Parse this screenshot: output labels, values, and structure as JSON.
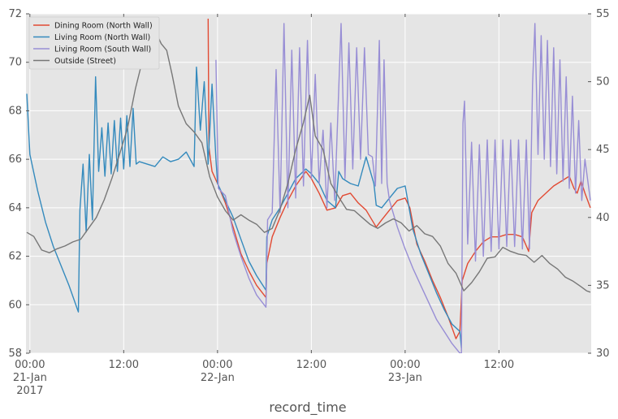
{
  "chart_data": {
    "type": "line",
    "title": "",
    "xlabel": "record_time",
    "ylabel_left": "",
    "ylabel_right": "",
    "grid": true,
    "legend_position": "top-left",
    "background": "#e5e5e5",
    "x_range_hours": [
      -0.5,
      71.8
    ],
    "ylim_left": [
      58,
      72
    ],
    "ylim_right": [
      30,
      55
    ],
    "yticks_left": [
      "58",
      "60",
      "62",
      "64",
      "66",
      "68",
      "70",
      "72"
    ],
    "yticks_right": [
      "30",
      "35",
      "40",
      "45",
      "50",
      "55"
    ],
    "xticks": [
      {
        "hour": 0,
        "lines": [
          "00:00",
          "21-Jan",
          "2017"
        ]
      },
      {
        "hour": 12,
        "lines": [
          "12:00"
        ]
      },
      {
        "hour": 24,
        "lines": [
          "00:00",
          "22-Jan"
        ]
      },
      {
        "hour": 36,
        "lines": [
          "12:00"
        ]
      },
      {
        "hour": 48,
        "lines": [
          "00:00",
          "23-Jan"
        ]
      },
      {
        "hour": 60,
        "lines": [
          "12:00"
        ]
      }
    ],
    "series": [
      {
        "name": "Dining Room (North Wall)",
        "color": "#e24a33",
        "axis": "left",
        "points": [
          [
            22.8,
            71.8
          ],
          [
            22.9,
            66.5
          ],
          [
            23.3,
            65.5
          ],
          [
            24,
            65.0
          ],
          [
            25,
            64.2
          ],
          [
            26,
            63.2
          ],
          [
            27,
            62.1
          ],
          [
            28,
            61.4
          ],
          [
            29,
            60.8
          ],
          [
            30.2,
            60.3
          ],
          [
            30.3,
            61.7
          ],
          [
            31,
            62.8
          ],
          [
            32,
            63.6
          ],
          [
            33,
            64.3
          ],
          [
            34,
            64.9
          ],
          [
            35.3,
            65.5
          ],
          [
            36,
            65.2
          ],
          [
            37,
            64.6
          ],
          [
            38,
            63.9
          ],
          [
            39.1,
            64.0
          ],
          [
            40,
            64.5
          ],
          [
            41,
            64.6
          ],
          [
            42,
            64.2
          ],
          [
            43,
            63.9
          ],
          [
            44.3,
            63.2
          ],
          [
            45,
            63.5
          ],
          [
            46,
            63.9
          ],
          [
            47,
            64.3
          ],
          [
            48,
            64.4
          ],
          [
            48.6,
            64.0
          ],
          [
            49.5,
            62.5
          ],
          [
            50.5,
            61.8
          ],
          [
            51.5,
            61.0
          ],
          [
            52.5,
            60.3
          ],
          [
            53.5,
            59.5
          ],
          [
            54.5,
            58.6
          ],
          [
            55.0,
            58.9
          ],
          [
            55.3,
            61.0
          ],
          [
            56,
            61.7
          ],
          [
            57,
            62.2
          ],
          [
            58,
            62.6
          ],
          [
            59,
            62.8
          ],
          [
            60,
            62.8
          ],
          [
            61,
            62.9
          ],
          [
            62,
            62.9
          ],
          [
            63,
            62.8
          ],
          [
            63.8,
            62.2
          ],
          [
            64.2,
            63.8
          ],
          [
            65,
            64.3
          ],
          [
            66,
            64.6
          ],
          [
            67,
            64.9
          ],
          [
            68,
            65.1
          ],
          [
            69,
            65.3
          ],
          [
            69.6,
            64.8
          ],
          [
            70.0,
            64.6
          ],
          [
            70.5,
            65.1
          ],
          [
            71.0,
            64.6
          ],
          [
            71.7,
            64.0
          ]
        ]
      },
      {
        "name": "Living Room (North Wall)",
        "color": "#348abd",
        "axis": "left",
        "points": [
          [
            -0.4,
            68.7
          ],
          [
            0,
            66.2
          ],
          [
            1,
            64.7
          ],
          [
            2,
            63.4
          ],
          [
            3,
            62.4
          ],
          [
            4,
            61.6
          ],
          [
            5,
            60.8
          ],
          [
            6.2,
            59.7
          ],
          [
            6.4,
            63.9
          ],
          [
            6.8,
            65.8
          ],
          [
            7.2,
            63.0
          ],
          [
            7.6,
            66.2
          ],
          [
            8.0,
            63.5
          ],
          [
            8.4,
            69.4
          ],
          [
            8.8,
            65.5
          ],
          [
            9.2,
            67.3
          ],
          [
            9.6,
            65.3
          ],
          [
            10.0,
            67.5
          ],
          [
            10.4,
            65.4
          ],
          [
            10.8,
            67.6
          ],
          [
            11.2,
            65.5
          ],
          [
            11.6,
            67.7
          ],
          [
            12.0,
            65.6
          ],
          [
            12.4,
            67.8
          ],
          [
            12.8,
            65.7
          ],
          [
            13.2,
            68.1
          ],
          [
            13.6,
            65.8
          ],
          [
            14,
            65.9
          ],
          [
            15,
            65.8
          ],
          [
            16,
            65.7
          ],
          [
            17,
            66.1
          ],
          [
            18,
            65.9
          ],
          [
            19,
            66.0
          ],
          [
            20,
            66.3
          ],
          [
            20.5,
            66.0
          ],
          [
            21,
            65.7
          ],
          [
            21.3,
            69.8
          ],
          [
            21.8,
            67.2
          ],
          [
            22.3,
            69.2
          ],
          [
            22.8,
            65.8
          ],
          [
            23.3,
            69.1
          ],
          [
            23.8,
            66.0
          ],
          [
            24,
            65.0
          ],
          [
            25,
            64.3
          ],
          [
            26,
            63.6
          ],
          [
            27,
            62.7
          ],
          [
            28,
            61.8
          ],
          [
            29,
            61.2
          ],
          [
            30.2,
            60.6
          ],
          [
            30.3,
            62.8
          ],
          [
            31,
            63.5
          ],
          [
            32,
            64.0
          ],
          [
            33,
            64.6
          ],
          [
            34,
            65.2
          ],
          [
            35.3,
            65.6
          ],
          [
            36,
            65.4
          ],
          [
            37,
            65.0
          ],
          [
            38,
            64.3
          ],
          [
            39.1,
            64.0
          ],
          [
            39.5,
            65.5
          ],
          [
            40,
            65.2
          ],
          [
            41,
            65.0
          ],
          [
            42,
            64.9
          ],
          [
            43,
            66.1
          ],
          [
            44,
            65.0
          ],
          [
            44.3,
            64.1
          ],
          [
            45,
            64.0
          ],
          [
            46,
            64.4
          ],
          [
            47,
            64.8
          ],
          [
            48,
            64.9
          ],
          [
            49,
            63.1
          ],
          [
            50,
            62.1
          ],
          [
            51,
            61.3
          ],
          [
            52,
            60.5
          ],
          [
            53,
            59.8
          ],
          [
            54,
            59.2
          ],
          [
            55,
            58.9
          ],
          [
            55.2,
            58.2
          ]
        ]
      },
      {
        "name": "Living Room (South Wall)",
        "color": "#988ed5",
        "axis": "left",
        "points": [
          [
            23.8,
            70.1
          ],
          [
            24.1,
            64.8
          ],
          [
            25,
            64.5
          ],
          [
            26,
            63.0
          ],
          [
            27,
            62.0
          ],
          [
            28,
            61.1
          ],
          [
            29,
            60.4
          ],
          [
            30.2,
            59.9
          ],
          [
            30.4,
            63.5
          ],
          [
            31.0,
            63.8
          ],
          [
            31.5,
            69.7
          ],
          [
            32.0,
            63.8
          ],
          [
            32.5,
            71.6
          ],
          [
            33.0,
            64.0
          ],
          [
            33.5,
            70.5
          ],
          [
            34.0,
            64.4
          ],
          [
            34.5,
            70.6
          ],
          [
            35.0,
            64.9
          ],
          [
            35.5,
            70.9
          ],
          [
            36.0,
            65.2
          ],
          [
            36.5,
            69.5
          ],
          [
            37.0,
            65.0
          ],
          [
            37.5,
            67.2
          ],
          [
            38.0,
            64.0
          ],
          [
            38.5,
            67.5
          ],
          [
            39.0,
            64.3
          ],
          [
            39.3,
            67.0
          ],
          [
            39.8,
            71.6
          ],
          [
            40.3,
            65.2
          ],
          [
            40.8,
            70.8
          ],
          [
            41.3,
            65.6
          ],
          [
            41.8,
            70.6
          ],
          [
            42.3,
            66.0
          ],
          [
            42.8,
            70.6
          ],
          [
            43.3,
            66.2
          ],
          [
            43.8,
            66.1
          ],
          [
            44.2,
            64.9
          ],
          [
            44.7,
            70.9
          ],
          [
            45.0,
            65.0
          ],
          [
            45.3,
            70.1
          ],
          [
            45.7,
            65.0
          ],
          [
            46,
            64.3
          ],
          [
            47,
            63.2
          ],
          [
            48,
            62.3
          ],
          [
            49,
            61.5
          ],
          [
            50,
            60.8
          ],
          [
            51,
            60.1
          ],
          [
            52,
            59.4
          ],
          [
            53,
            58.9
          ],
          [
            54,
            58.4
          ],
          [
            55,
            58.0
          ],
          [
            55.2,
            58.0
          ],
          [
            55.4,
            67.5
          ],
          [
            55.6,
            68.4
          ],
          [
            56.0,
            62.5
          ],
          [
            56.5,
            66.7
          ],
          [
            57.0,
            61.8
          ],
          [
            57.5,
            66.6
          ],
          [
            58.0,
            62.0
          ],
          [
            58.5,
            66.8
          ],
          [
            59.0,
            62.2
          ],
          [
            59.5,
            66.8
          ],
          [
            60.0,
            62.3
          ],
          [
            60.5,
            66.8
          ],
          [
            61.0,
            62.4
          ],
          [
            61.5,
            66.8
          ],
          [
            62.0,
            62.4
          ],
          [
            62.5,
            66.8
          ],
          [
            63.0,
            62.3
          ],
          [
            63.5,
            66.8
          ],
          [
            63.9,
            62.3
          ],
          [
            64.3,
            69.1
          ],
          [
            64.6,
            71.6
          ],
          [
            65.0,
            66.2
          ],
          [
            65.4,
            71.1
          ],
          [
            65.8,
            66.0
          ],
          [
            66.2,
            70.9
          ],
          [
            66.6,
            65.7
          ],
          [
            67.0,
            70.6
          ],
          [
            67.4,
            65.4
          ],
          [
            67.8,
            70.1
          ],
          [
            68.2,
            65.1
          ],
          [
            68.6,
            69.4
          ],
          [
            69.0,
            64.8
          ],
          [
            69.4,
            68.6
          ],
          [
            69.8,
            64.6
          ],
          [
            70.2,
            67.6
          ],
          [
            70.6,
            64.3
          ],
          [
            71.0,
            66.0
          ],
          [
            71.7,
            64.3
          ]
        ]
      },
      {
        "name": "Outside (Street)",
        "color": "#777777",
        "axis": "right",
        "points": [
          [
            -0.4,
            38.9
          ],
          [
            0.5,
            38.6
          ],
          [
            1.5,
            37.6
          ],
          [
            2.5,
            37.4
          ],
          [
            3.5,
            37.7
          ],
          [
            4.5,
            37.9
          ],
          [
            5.5,
            38.2
          ],
          [
            6.5,
            38.4
          ],
          [
            7.5,
            39.2
          ],
          [
            8.5,
            40.0
          ],
          [
            9.5,
            41.3
          ],
          [
            10.5,
            42.9
          ],
          [
            11.5,
            44.7
          ],
          [
            12.5,
            46.6
          ],
          [
            13.5,
            49.5
          ],
          [
            14.5,
            51.8
          ],
          [
            15.2,
            53.6
          ],
          [
            16.0,
            53.8
          ],
          [
            16.8,
            52.8
          ],
          [
            17.5,
            52.3
          ],
          [
            18.2,
            50.5
          ],
          [
            19.0,
            48.2
          ],
          [
            20.0,
            46.9
          ],
          [
            21.0,
            46.3
          ],
          [
            22.0,
            45.5
          ],
          [
            23.0,
            43.0
          ],
          [
            24.0,
            41.5
          ],
          [
            25.0,
            40.5
          ],
          [
            26.0,
            39.8
          ],
          [
            27.0,
            40.2
          ],
          [
            28.0,
            39.8
          ],
          [
            29.0,
            39.5
          ],
          [
            30.0,
            38.9
          ],
          [
            31.0,
            39.2
          ],
          [
            32.0,
            40.6
          ],
          [
            33.0,
            42.5
          ],
          [
            34.0,
            45.0
          ],
          [
            35.0,
            47.0
          ],
          [
            35.8,
            49.0
          ],
          [
            36.5,
            46.0
          ],
          [
            37.5,
            45.0
          ],
          [
            38.5,
            42.5
          ],
          [
            39.5,
            41.5
          ],
          [
            40.5,
            40.6
          ],
          [
            41.5,
            40.5
          ],
          [
            42.5,
            40.0
          ],
          [
            43.5,
            39.5
          ],
          [
            44.5,
            39.2
          ],
          [
            45.5,
            39.6
          ],
          [
            46.5,
            39.9
          ],
          [
            47.5,
            39.6
          ],
          [
            48.5,
            39.0
          ],
          [
            49.5,
            39.4
          ],
          [
            50.5,
            38.8
          ],
          [
            51.5,
            38.6
          ],
          [
            52.5,
            37.9
          ],
          [
            53.5,
            36.6
          ],
          [
            54.5,
            35.9
          ],
          [
            55.5,
            34.6
          ],
          [
            56.5,
            35.2
          ],
          [
            57.5,
            36.0
          ],
          [
            58.5,
            37.0
          ],
          [
            59.5,
            37.1
          ],
          [
            60.5,
            37.8
          ],
          [
            61.5,
            37.5
          ],
          [
            62.5,
            37.3
          ],
          [
            63.5,
            37.2
          ],
          [
            64.5,
            36.7
          ],
          [
            65.5,
            37.2
          ],
          [
            66.5,
            36.6
          ],
          [
            67.5,
            36.2
          ],
          [
            68.5,
            35.6
          ],
          [
            69.5,
            35.3
          ],
          [
            70.5,
            34.9
          ],
          [
            71.2,
            34.6
          ],
          [
            71.7,
            34.5
          ]
        ]
      }
    ]
  }
}
